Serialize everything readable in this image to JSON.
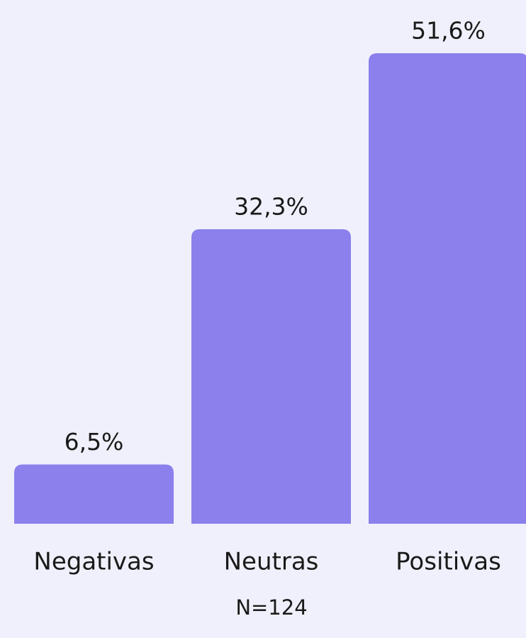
{
  "chart_data": {
    "type": "bar",
    "categories": [
      "Negativas",
      "Neutras",
      "Positivas"
    ],
    "values": [
      6.5,
      32.3,
      51.6
    ],
    "value_labels": [
      "6,5%",
      "32,3%",
      "51,6%"
    ],
    "color": "#8b80ec",
    "annotation": "N=124"
  }
}
